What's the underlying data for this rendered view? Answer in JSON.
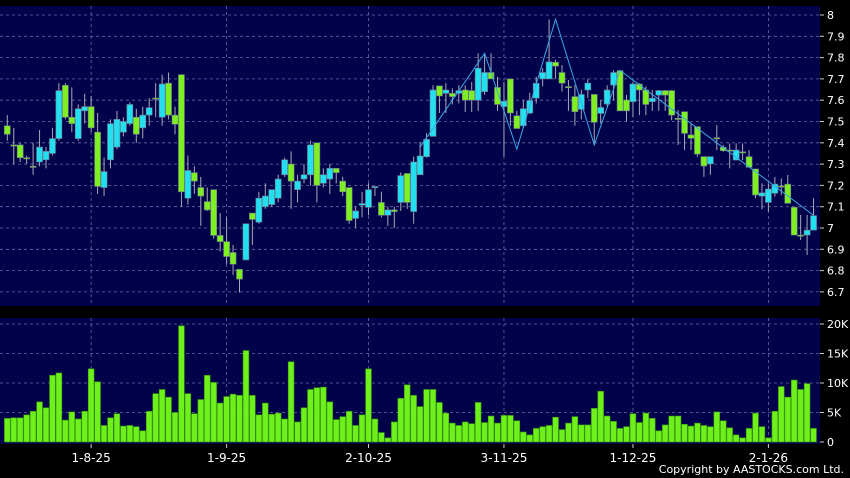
{
  "chart_data": [
    {
      "type": "candlestick",
      "title": "",
      "ylim": [
        6.65,
        8.03
      ],
      "y_ticks": [
        "6.7",
        "6.8",
        "6.9",
        "7",
        "7.1",
        "7.2",
        "7.3",
        "7.4",
        "7.5",
        "7.6",
        "7.7",
        "7.8",
        "7.9",
        "8"
      ],
      "x_ticks": [
        {
          "index": 13,
          "label": "1-8-25"
        },
        {
          "index": 34,
          "label": "1-9-25"
        },
        {
          "index": 56,
          "label": "2-10-25"
        },
        {
          "index": 77,
          "label": "3-11-25"
        },
        {
          "index": 97,
          "label": "1-12-25"
        },
        {
          "index": 118,
          "label": "2-1-26"
        }
      ],
      "grid": true,
      "colors": {
        "up": "#22e0f0",
        "down": "#7ef022",
        "wick": "#a8a8b8",
        "zigzag": "#3aa8e8",
        "background": "#02024a"
      },
      "ohlc": [
        [
          7.48,
          7.53,
          7.41,
          7.44
        ],
        [
          7.39,
          7.47,
          7.3,
          7.39
        ],
        [
          7.39,
          7.4,
          7.31,
          7.33
        ],
        [
          7.33,
          7.34,
          7.3,
          7.33
        ],
        [
          7.29,
          7.4,
          7.25,
          7.29
        ],
        [
          7.31,
          7.46,
          7.29,
          7.38
        ],
        [
          7.32,
          7.38,
          7.28,
          7.36
        ],
        [
          7.35,
          7.47,
          7.34,
          7.42
        ],
        [
          7.42,
          7.68,
          7.41,
          7.645
        ],
        [
          7.67,
          7.68,
          7.51,
          7.52
        ],
        [
          7.52,
          7.66,
          7.45,
          7.49
        ],
        [
          7.42,
          7.58,
          7.41,
          7.56
        ],
        [
          7.55,
          7.63,
          7.49,
          7.57
        ],
        [
          7.57,
          7.62,
          7.45,
          7.47
        ],
        [
          7.45,
          7.54,
          7.16,
          7.195
        ],
        [
          7.19,
          7.33,
          7.15,
          7.265
        ],
        [
          7.32,
          7.51,
          7.28,
          7.49
        ],
        [
          7.38,
          7.55,
          7.37,
          7.51
        ],
        [
          7.45,
          7.52,
          7.43,
          7.5
        ],
        [
          7.49,
          7.59,
          7.48,
          7.58
        ],
        [
          7.52,
          7.56,
          7.4,
          7.44
        ],
        [
          7.47,
          7.57,
          7.42,
          7.53
        ],
        [
          7.53,
          7.61,
          7.48,
          7.565
        ],
        [
          7.61,
          7.68,
          7.52,
          7.61
        ],
        [
          7.52,
          7.72,
          7.48,
          7.676
        ],
        [
          7.68,
          7.73,
          7.51,
          7.53
        ],
        [
          7.53,
          7.57,
          7.44,
          7.487
        ],
        [
          7.72,
          7.72,
          7.1,
          7.17
        ],
        [
          7.14,
          7.34,
          7.11,
          7.27
        ],
        [
          7.26,
          7.29,
          7.16,
          7.22
        ],
        [
          7.19,
          7.24,
          7.01,
          7.15
        ],
        [
          7.124,
          7.19,
          7.08,
          7.085
        ],
        [
          7.18,
          7.18,
          6.95,
          6.965
        ],
        [
          6.965,
          7.07,
          6.89,
          6.936
        ],
        [
          6.936,
          7.05,
          6.83,
          6.866
        ],
        [
          6.885,
          6.92,
          6.78,
          6.83
        ],
        [
          6.806,
          6.806,
          6.697,
          6.76
        ],
        [
          6.85,
          7.02,
          6.85,
          7.02
        ],
        [
          7.07,
          7.07,
          6.92,
          7.04
        ],
        [
          7.027,
          7.17,
          7.02,
          7.14
        ],
        [
          7.1,
          7.21,
          7.09,
          7.15
        ],
        [
          7.11,
          7.18,
          7.1,
          7.18
        ],
        [
          7.14,
          7.25,
          7.12,
          7.23
        ],
        [
          7.25,
          7.33,
          7.24,
          7.32
        ],
        [
          7.3,
          7.36,
          7.09,
          7.22
        ],
        [
          7.18,
          7.25,
          7.12,
          7.22
        ],
        [
          7.23,
          7.3,
          7.21,
          7.25
        ],
        [
          7.25,
          7.41,
          7.2,
          7.39
        ],
        [
          7.4,
          7.4,
          7.12,
          7.2
        ],
        [
          7.21,
          7.28,
          7.19,
          7.25
        ],
        [
          7.23,
          7.3,
          7.16,
          7.28
        ],
        [
          7.28,
          7.28,
          7.21,
          7.26
        ],
        [
          7.22,
          7.24,
          7.15,
          7.17
        ],
        [
          7.19,
          7.19,
          7.02,
          7.035
        ],
        [
          7.045,
          7.1,
          7.0,
          7.08
        ],
        [
          7.107,
          7.17,
          7.05,
          7.115
        ],
        [
          7.097,
          7.21,
          7.06,
          7.18
        ],
        [
          7.19,
          7.195,
          7.15,
          7.195
        ],
        [
          7.12,
          7.17,
          7.05,
          7.06
        ],
        [
          7.06,
          7.1,
          7.01,
          7.085
        ],
        [
          7.085,
          7.1,
          7.0,
          7.077
        ],
        [
          7.12,
          7.26,
          7.08,
          7.246
        ],
        [
          7.256,
          7.256,
          7.09,
          7.12
        ],
        [
          7.077,
          7.335,
          7.02,
          7.31
        ],
        [
          7.25,
          7.405,
          7.25,
          7.338
        ],
        [
          7.335,
          7.445,
          7.33,
          7.416
        ],
        [
          7.43,
          7.67,
          7.43,
          7.648
        ],
        [
          7.667,
          7.667,
          7.54,
          7.62
        ],
        [
          7.632,
          7.68,
          7.54,
          7.648
        ],
        [
          7.632,
          7.656,
          7.58,
          7.617
        ],
        [
          7.632,
          7.67,
          7.585,
          7.645
        ],
        [
          7.648,
          7.67,
          7.545,
          7.6
        ],
        [
          7.645,
          7.685,
          7.545,
          7.6
        ],
        [
          7.6,
          7.82,
          7.55,
          7.75
        ],
        [
          7.64,
          7.82,
          7.625,
          7.73
        ],
        [
          7.73,
          7.82,
          7.7,
          7.7
        ],
        [
          7.66,
          7.71,
          7.55,
          7.58
        ],
        [
          7.57,
          7.685,
          7.335,
          7.595
        ],
        [
          7.7,
          7.7,
          7.48,
          7.54
        ],
        [
          7.527,
          7.55,
          7.467,
          7.467
        ],
        [
          7.48,
          7.6,
          7.47,
          7.56
        ],
        [
          7.539,
          7.635,
          7.535,
          7.598
        ],
        [
          7.61,
          7.71,
          7.585,
          7.679
        ],
        [
          7.7,
          7.75,
          7.665,
          7.73
        ],
        [
          7.7,
          7.98,
          7.7,
          7.78
        ],
        [
          7.778,
          7.79,
          7.7,
          7.76
        ],
        [
          7.73,
          7.765,
          7.64,
          7.68
        ],
        [
          7.664,
          7.695,
          7.55,
          7.664
        ],
        [
          7.617,
          7.67,
          7.48,
          7.546
        ],
        [
          7.557,
          7.65,
          7.51,
          7.627
        ],
        [
          7.648,
          7.7,
          7.61,
          7.68
        ],
        [
          7.627,
          7.627,
          7.39,
          7.496
        ],
        [
          7.538,
          7.6,
          7.49,
          7.566
        ],
        [
          7.582,
          7.67,
          7.57,
          7.648
        ],
        [
          7.671,
          7.74,
          7.6,
          7.73
        ],
        [
          7.739,
          7.74,
          7.55,
          7.55
        ],
        [
          7.601,
          7.625,
          7.5,
          7.55
        ],
        [
          7.593,
          7.687,
          7.52,
          7.676
        ],
        [
          7.676,
          7.68,
          7.53,
          7.648
        ],
        [
          7.648,
          7.665,
          7.53,
          7.58
        ],
        [
          7.593,
          7.648,
          7.55,
          7.609
        ],
        [
          7.624,
          7.648,
          7.55,
          7.645
        ],
        [
          7.645,
          7.648,
          7.55,
          7.624
        ],
        [
          7.645,
          7.648,
          7.506,
          7.53
        ],
        [
          7.515,
          7.554,
          7.39,
          7.515
        ],
        [
          7.546,
          7.546,
          7.366,
          7.444
        ],
        [
          7.437,
          7.491,
          7.366,
          7.421
        ],
        [
          7.476,
          7.476,
          7.335,
          7.347
        ],
        [
          7.335,
          7.335,
          7.24,
          7.291
        ],
        [
          7.301,
          7.335,
          7.25,
          7.335
        ],
        [
          7.424,
          7.483,
          7.366,
          7.424
        ],
        [
          7.379,
          7.39,
          7.358,
          7.363
        ],
        [
          7.366,
          7.397,
          7.28,
          7.366
        ],
        [
          7.319,
          7.397,
          7.319,
          7.366
        ],
        [
          7.358,
          7.397,
          7.319,
          7.358
        ],
        [
          7.335,
          7.366,
          7.285,
          7.285
        ],
        [
          7.277,
          7.277,
          7.14,
          7.155
        ],
        [
          7.15,
          7.21,
          7.088,
          7.165
        ],
        [
          7.12,
          7.21,
          7.077,
          7.183
        ],
        [
          7.163,
          7.24,
          7.147,
          7.206
        ],
        [
          7.197,
          7.233,
          7.155,
          7.197
        ],
        [
          7.206,
          7.249,
          7.116,
          7.116
        ],
        [
          7.097,
          7.097,
          6.967,
          6.967
        ],
        [
          6.967,
          7.061,
          6.944,
          6.967
        ],
        [
          6.967,
          7.061,
          6.873,
          6.99
        ],
        [
          6.99,
          7.14,
          6.99,
          7.058
        ]
      ],
      "zigzag": [
        [
          64,
          7.38
        ],
        [
          74,
          7.82
        ],
        [
          79,
          7.37
        ],
        [
          85,
          7.98
        ],
        [
          91,
          7.39
        ],
        [
          95,
          7.74
        ],
        [
          125,
          7.06
        ]
      ]
    },
    {
      "type": "bar",
      "title": "",
      "ylim": [
        0,
        20000
      ],
      "y_ticks": [
        "0",
        "5K",
        "10K",
        "15K",
        "20K"
      ],
      "grid": true,
      "colors": {
        "bar": "#6ef01a"
      },
      "values_thousands": [
        4.0,
        4.1,
        4.1,
        4.6,
        5.2,
        6.8,
        5.8,
        11.3,
        11.7,
        3.7,
        5.1,
        3.9,
        5.2,
        12.4,
        10.2,
        2.8,
        4.1,
        4.8,
        2.7,
        2.8,
        2.6,
        1.9,
        5.2,
        8.2,
        8.9,
        7.6,
        5.0,
        19.7,
        8.2,
        4.8,
        7.2,
        11.3,
        10.1,
        6.6,
        7.7,
        8.1,
        7.9,
        15.5,
        7.9,
        4.6,
        6.6,
        4.7,
        4.9,
        3.9,
        13.6,
        3.4,
        5.8,
        8.9,
        9.2,
        9.3,
        6.8,
        3.8,
        4.3,
        5.2,
        2.8,
        4.6,
        12.4,
        3.9,
        1.6,
        0.7,
        3.4,
        7.4,
        9.7,
        7.9,
        6.0,
        8.9,
        8.9,
        6.7,
        4.9,
        3.2,
        2.8,
        3.4,
        3.1,
        6.7,
        3.3,
        4.4,
        3.2,
        4.5,
        4.5,
        3.6,
        1.7,
        1.2,
        2.3,
        2.6,
        2.8,
        4.2,
        2.1,
        3.2,
        4.3,
        2.9,
        2.9,
        5.7,
        8.6,
        4.4,
        3.5,
        2.3,
        2.6,
        4.8,
        3.3,
        4.9,
        4.0,
        1.9,
        2.9,
        4.4,
        4.4,
        3.0,
        2.7,
        3.2,
        2.8,
        2.6,
        5.1,
        3.6,
        2.4,
        1.2,
        0.7,
        2.3,
        4.9,
        2.6,
        0.7,
        5.2,
        9.4,
        7.6,
        10.5,
        8.9,
        9.9,
        2.3
      ]
    }
  ],
  "footer": {
    "copyright": "Copyright by AASTOCKS.com Ltd."
  }
}
